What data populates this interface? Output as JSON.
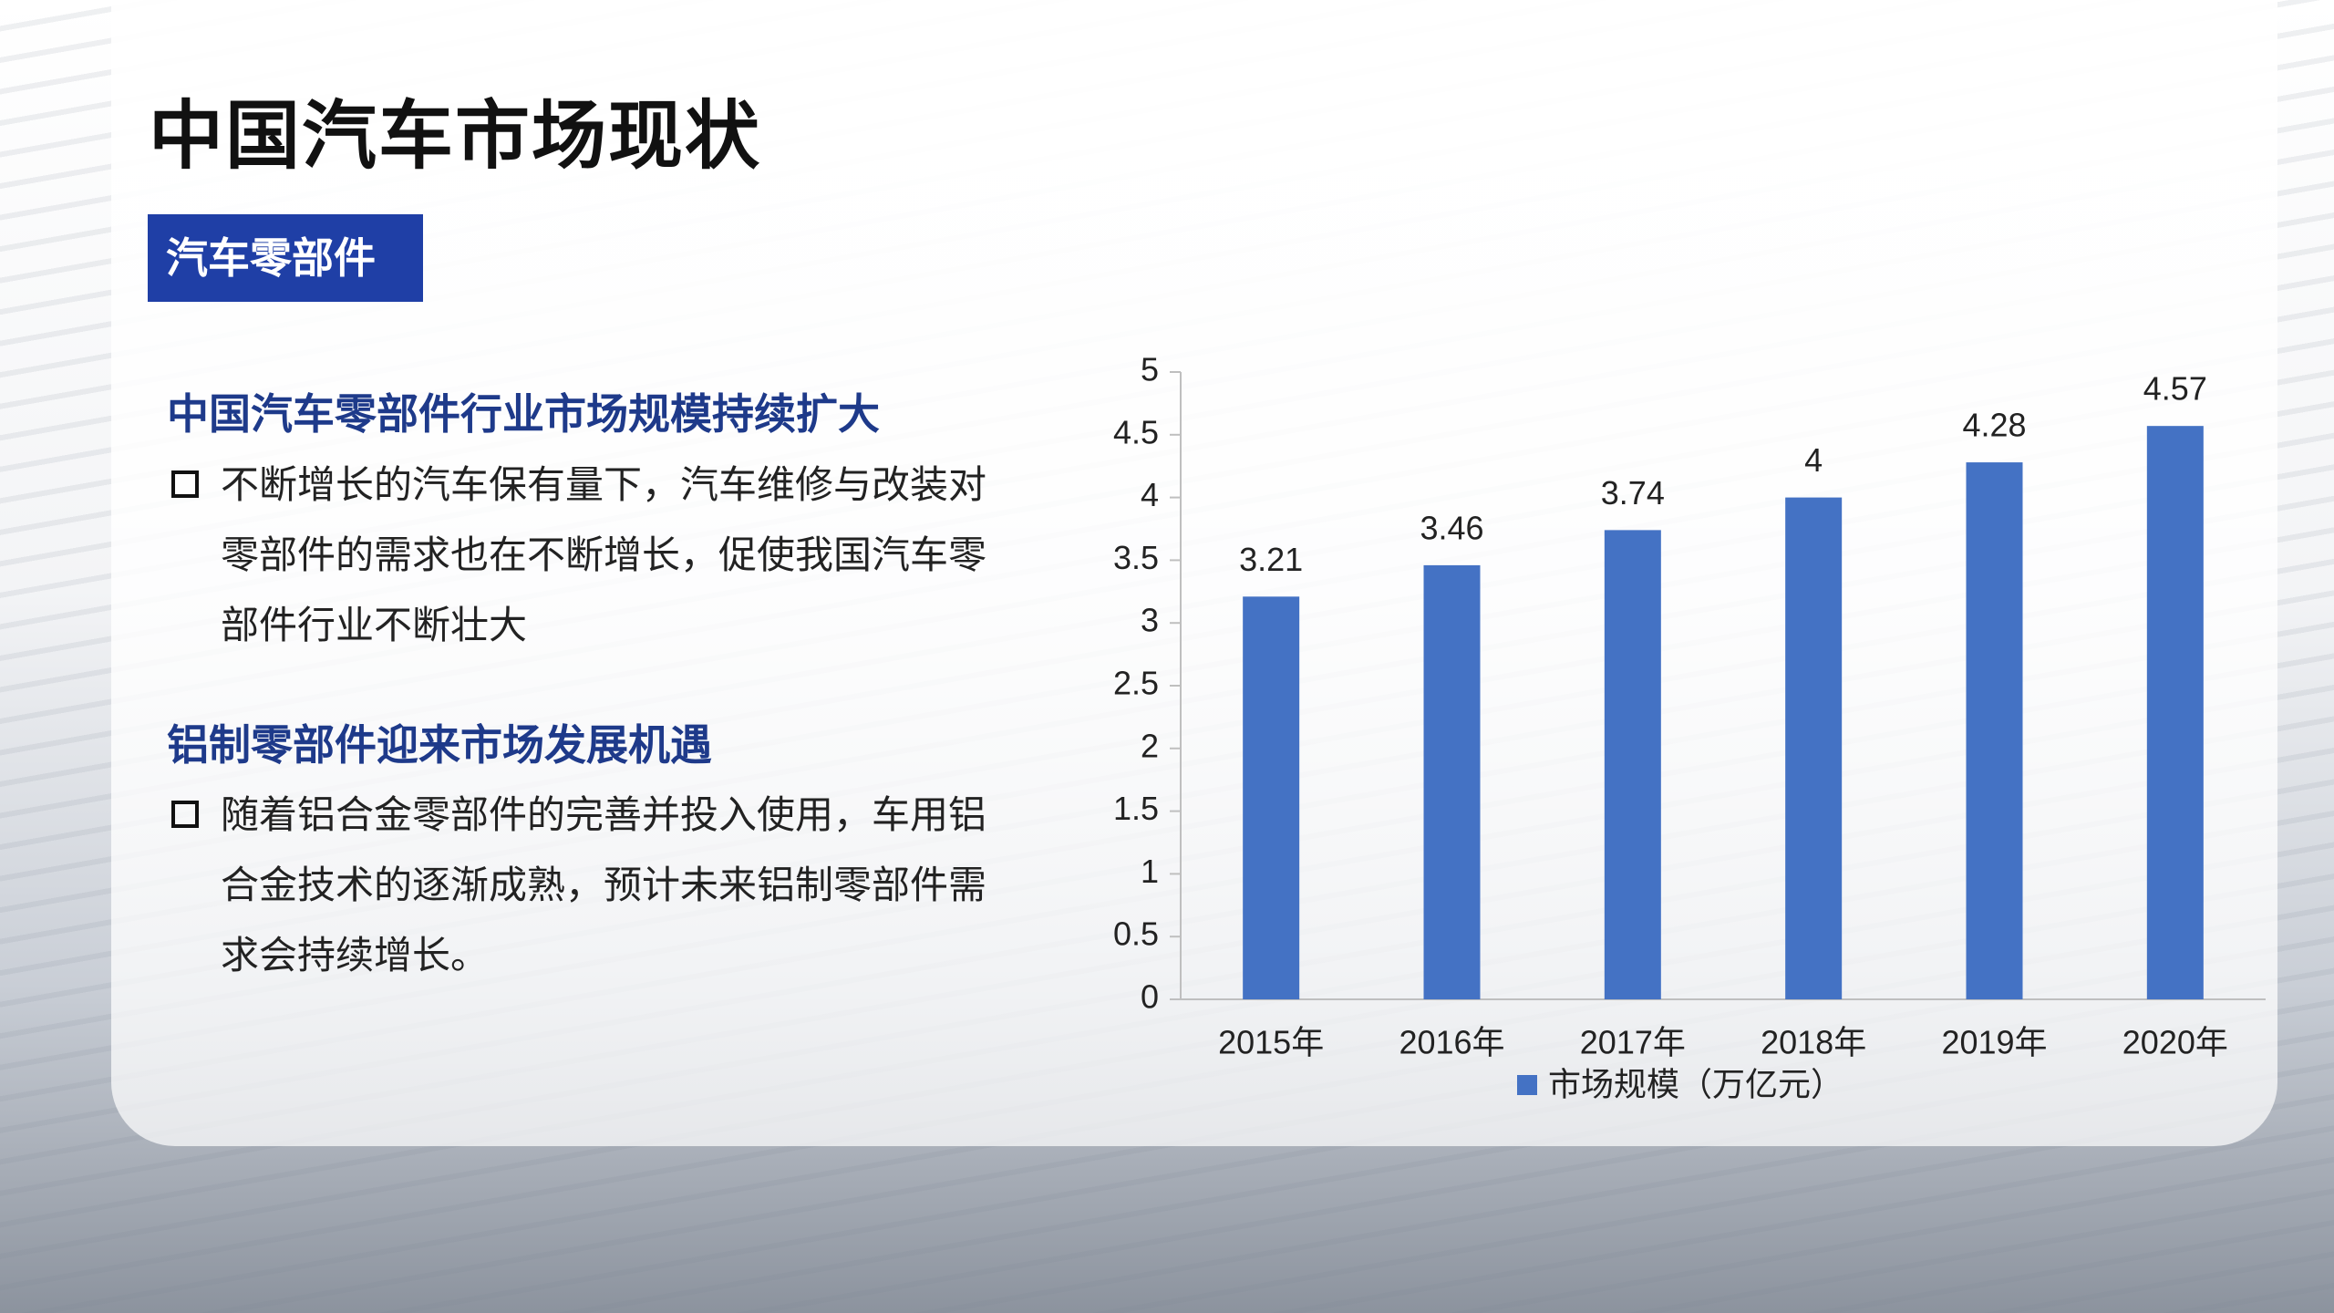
{
  "title": "中国汽车市场现状",
  "tag": "汽车零部件",
  "sections": [
    {
      "heading": "中国汽车零部件行业市场规模持续扩大",
      "bullet": "不断增长的汽车保有量下，汽车维修与改装对零部件的需求也在不断增长，促使我国汽车零部件行业不断壮大"
    },
    {
      "heading": "铝制零部件迎来市场发展机遇",
      "bullet": "随着铝合金零部件的完善并投入使用，车用铝合金技术的逐渐成熟，预计未来铝制零部件需求会持续增长。"
    }
  ],
  "chart_data": {
    "type": "bar",
    "categories": [
      "2015年",
      "2016年",
      "2017年",
      "2018年",
      "2019年",
      "2020年"
    ],
    "series": [
      {
        "name": "市场规模（万亿元）",
        "color": "#4472c4",
        "values": [
          3.21,
          3.46,
          3.74,
          4,
          4.28,
          4.57
        ]
      }
    ],
    "ylim": [
      0,
      5
    ],
    "yticks": [
      0,
      0.5,
      1,
      1.5,
      2,
      2.5,
      3,
      3.5,
      4,
      4.5,
      5
    ],
    "legend": "bottom",
    "data_labels": true
  }
}
